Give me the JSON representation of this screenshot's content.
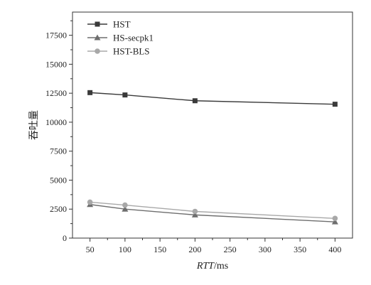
{
  "chart_data": {
    "type": "line",
    "xlabel_italic": "RTT",
    "xlabel_unit": "/ms",
    "ylabel": "吞吐量",
    "x": [
      50,
      100,
      200,
      400
    ],
    "xlim": [
      25,
      425
    ],
    "ylim": [
      0,
      19500
    ],
    "xticks": [
      50,
      100,
      150,
      200,
      250,
      300,
      350,
      400
    ],
    "yticks": [
      0,
      2500,
      5000,
      7500,
      10000,
      12500,
      15000,
      17500
    ],
    "grid": false,
    "legend_position": "top-left",
    "series": [
      {
        "name": "HST",
        "values": [
          12550,
          12350,
          11850,
          11550
        ],
        "marker": "square",
        "color": "#3a3a3a"
      },
      {
        "name": "HS-secpk1",
        "values": [
          2900,
          2500,
          2000,
          1400
        ],
        "marker": "triangle",
        "color": "#6e6e6e"
      },
      {
        "name": "HST-BLS",
        "values": [
          3100,
          2850,
          2300,
          1700
        ],
        "marker": "circle",
        "color": "#a8a8a8"
      }
    ]
  }
}
